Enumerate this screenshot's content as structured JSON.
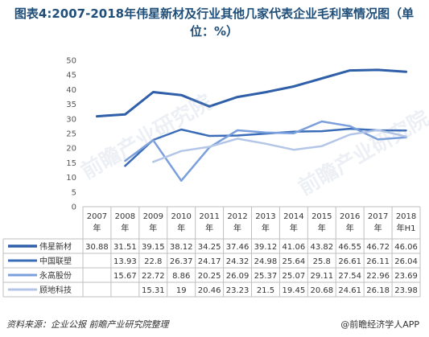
{
  "title": "图表4:2007-2018年伟星新材及行业其他几家代表企业毛利率情况图（单位：%）",
  "source": "资料来源：企业公报 前瞻产业研究院整理",
  "brand": "@前瞻经济学人APP",
  "watermark": "前瞻产业研究院",
  "chart_data": {
    "type": "line",
    "categories": [
      "2007\n年",
      "2008\n年",
      "2009\n年",
      "2010\n年",
      "2011\n年",
      "2012\n年",
      "2013\n年",
      "2014\n年",
      "2015\n年",
      "2016\n年",
      "2017\n年",
      "2018\n年H1"
    ],
    "ylim": [
      0,
      50
    ],
    "yticks": [
      0,
      5,
      10,
      15,
      20,
      25,
      30,
      35,
      40,
      45,
      50
    ],
    "grid": false,
    "legend": "table-bottom",
    "series": [
      {
        "name": "伟星新材",
        "color": "#2e5fa8",
        "width": 3,
        "values": [
          30.88,
          31.51,
          39.15,
          38.12,
          34.25,
          37.46,
          39.12,
          41.06,
          43.82,
          46.55,
          46.72,
          46.06
        ]
      },
      {
        "name": "中国联塑",
        "color": "#3a6cb8",
        "width": 2.5,
        "values": [
          null,
          13.93,
          22.8,
          26.37,
          24.17,
          24.32,
          24.98,
          25.64,
          25.8,
          26.61,
          26.11,
          26.04
        ]
      },
      {
        "name": "永高股份",
        "color": "#7a9fdc",
        "width": 2.5,
        "values": [
          null,
          15.67,
          22.72,
          8.86,
          20.25,
          26.09,
          25.37,
          25.07,
          29.11,
          27.54,
          22.96,
          23.69
        ]
      },
      {
        "name": "顾地科技",
        "color": "#b4c6e7",
        "width": 2.5,
        "values": [
          null,
          null,
          15.31,
          19,
          20.46,
          23.23,
          21.5,
          19.45,
          20.68,
          24.61,
          26.18,
          23.98
        ]
      }
    ]
  }
}
